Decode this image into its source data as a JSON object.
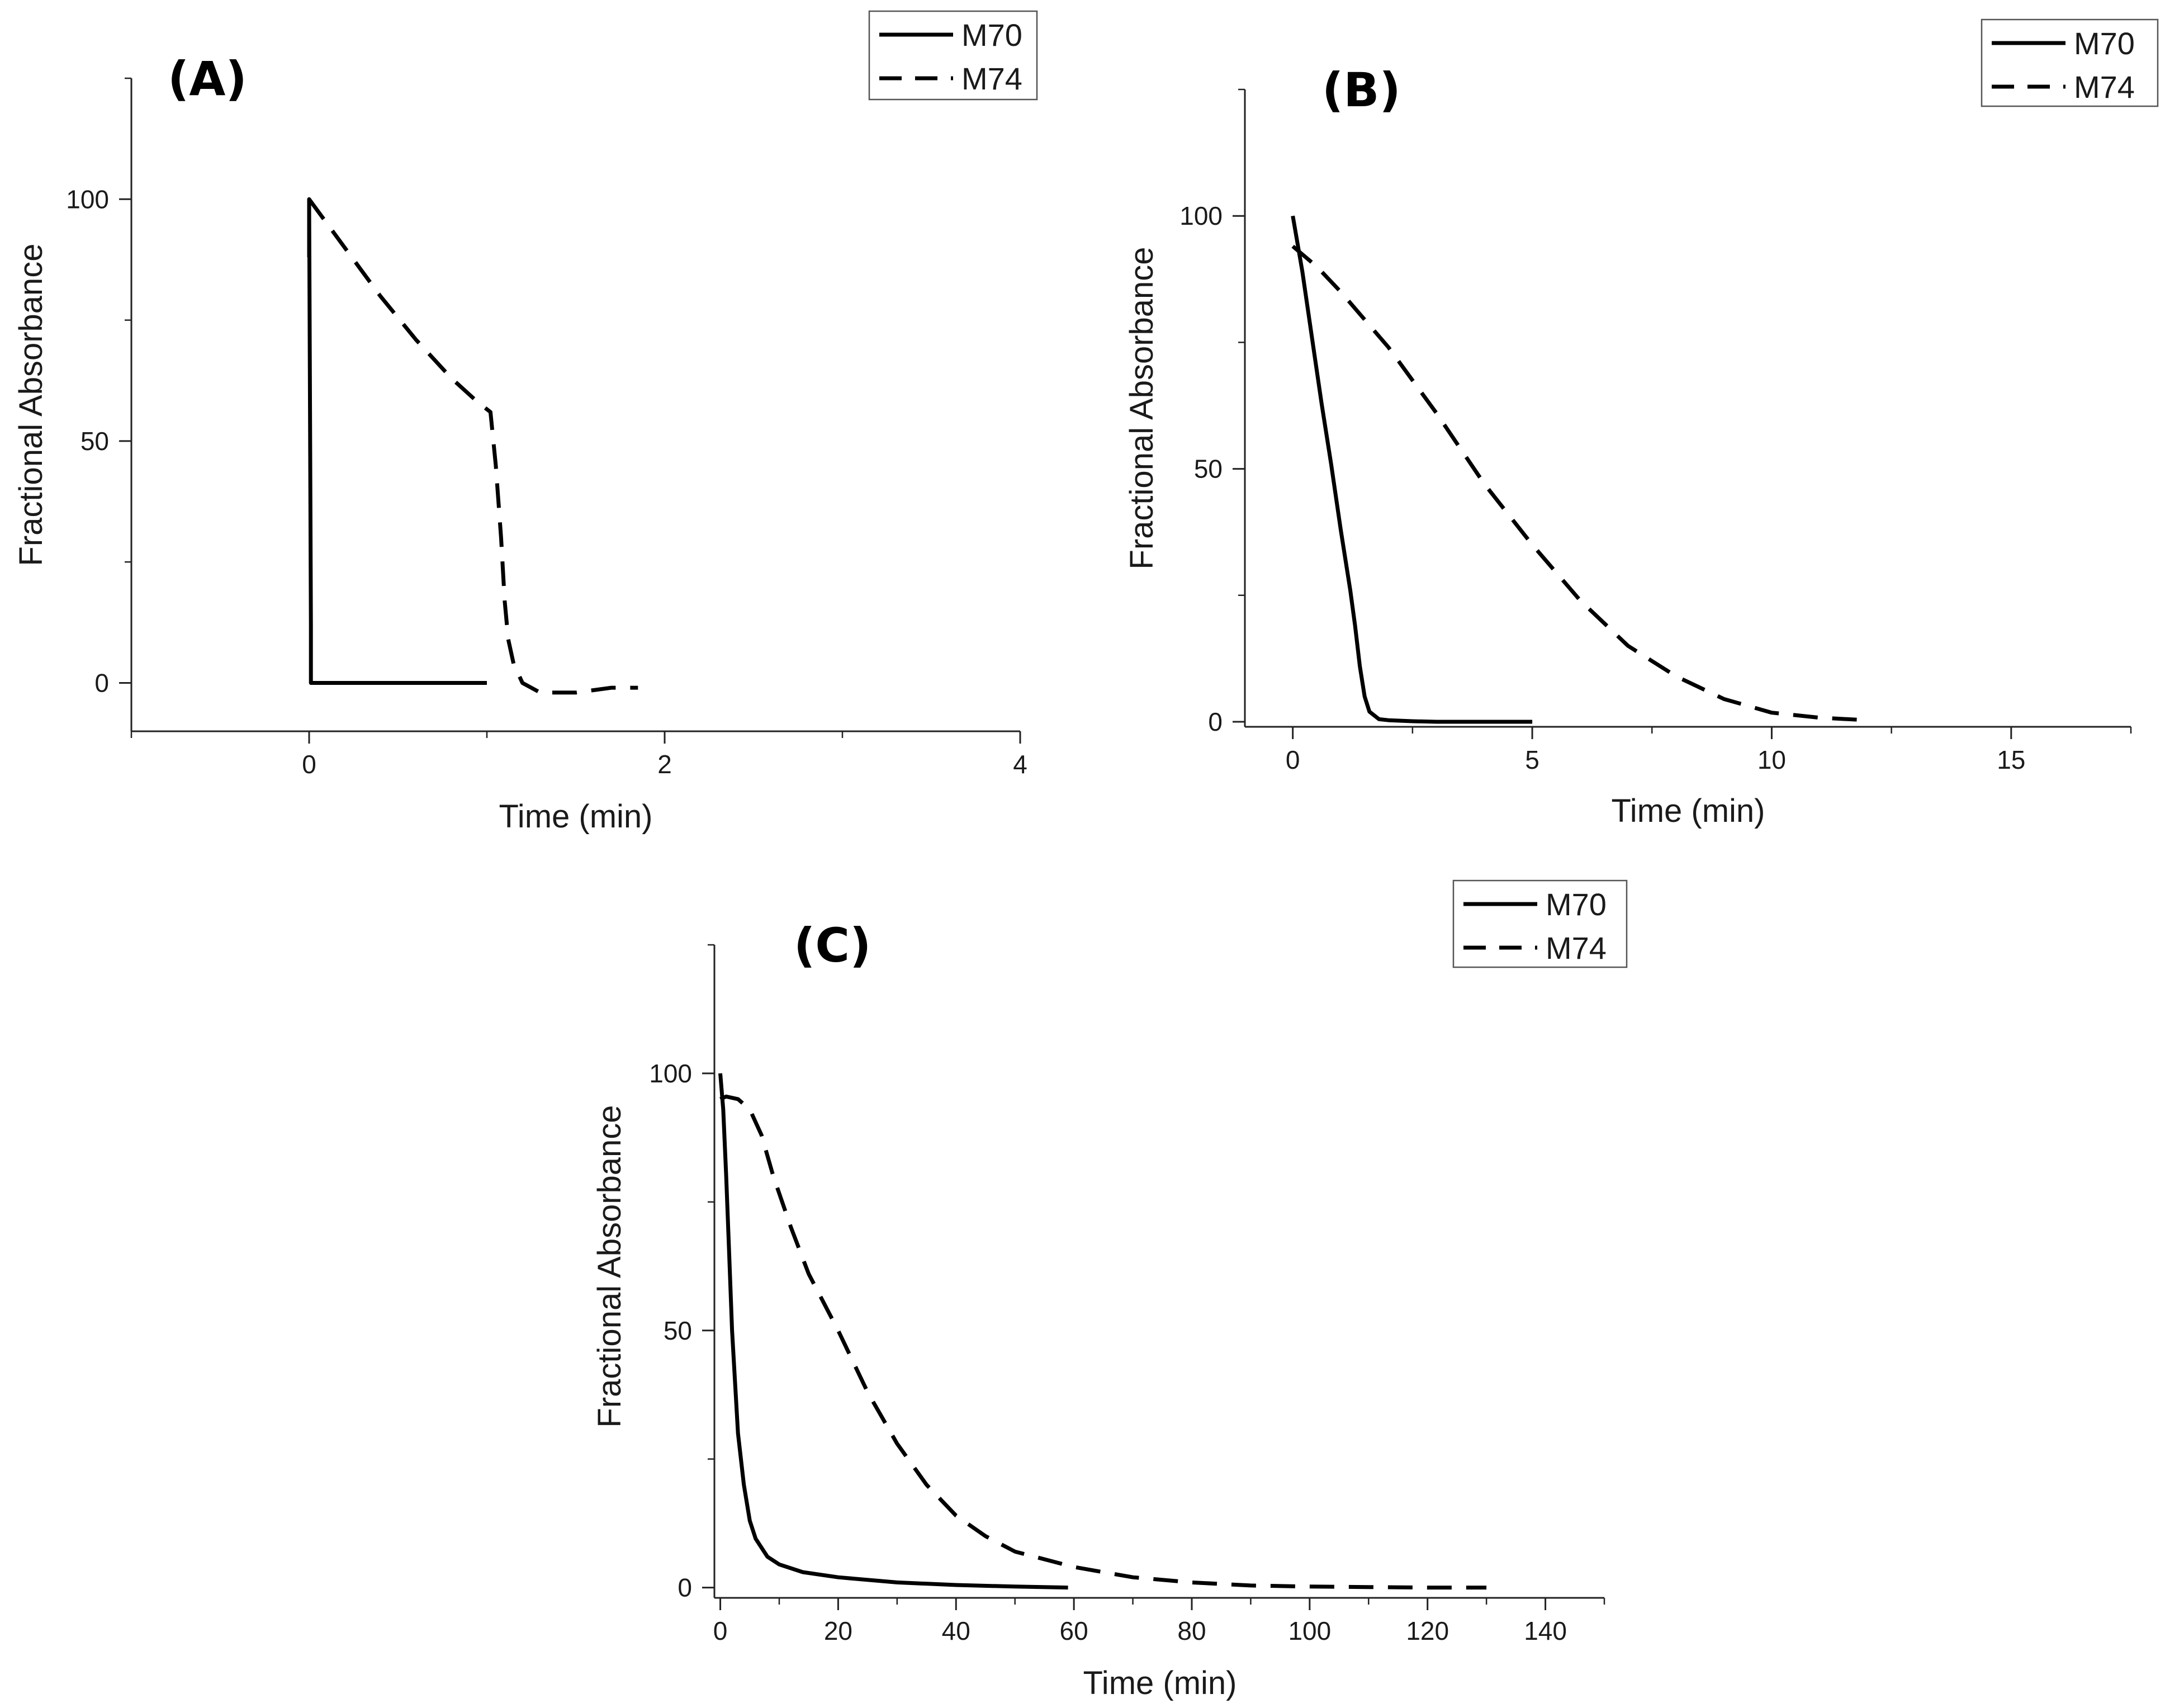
{
  "chart_data": [
    {
      "type": "line",
      "panel_label": "(A)",
      "xlabel": "Time (min)",
      "ylabel": "Fractional Absorbance",
      "xlim": [
        -1,
        4
      ],
      "ylim": [
        -10,
        125
      ],
      "xticks": [
        0,
        2,
        4
      ],
      "xtick_labels": [
        "0",
        "2",
        "4"
      ],
      "yticks": [
        0,
        50,
        100
      ],
      "ytick_labels": [
        "0",
        "50",
        "100"
      ],
      "grid": false,
      "legend_position": "top-right",
      "series": [
        {
          "name": "M70",
          "style": "solid",
          "x": [
            0,
            0,
            0.01,
            0.01,
            1.0
          ],
          "y": [
            88,
            100,
            12,
            0,
            0
          ]
        },
        {
          "name": "M74",
          "style": "dashed",
          "x": [
            0,
            0.2,
            0.4,
            0.6,
            0.8,
            0.95,
            1.02,
            1.05,
            1.08,
            1.1,
            1.12,
            1.15,
            1.2,
            1.3,
            1.5,
            1.7,
            1.85
          ],
          "y": [
            100,
            90,
            80,
            71,
            63,
            58,
            56,
            45,
            30,
            17,
            9,
            4,
            0,
            -2,
            -2,
            -1,
            -1
          ]
        }
      ],
      "legend": [
        "M70",
        "M74"
      ]
    },
    {
      "type": "line",
      "panel_label": "(B)",
      "xlabel": "Time (min)",
      "ylabel": "Fractional Absorbance",
      "xlim": [
        -1,
        17.5
      ],
      "ylim": [
        -1,
        125
      ],
      "xticks": [
        0,
        5,
        10,
        15
      ],
      "xtick_labels": [
        "0",
        "5",
        "10",
        "15"
      ],
      "yticks": [
        0,
        50,
        100
      ],
      "ytick_labels": [
        "0",
        "50",
        "100"
      ],
      "grid": false,
      "legend_position": "top-right",
      "series": [
        {
          "name": "M70",
          "style": "solid",
          "x": [
            0,
            0.2,
            0.4,
            0.6,
            0.8,
            1.0,
            1.2,
            1.3,
            1.4,
            1.5,
            1.6,
            1.8,
            2.0,
            2.5,
            3.0,
            4.0,
            5.0
          ],
          "y": [
            100,
            89,
            76,
            63,
            51,
            38,
            26,
            19,
            11,
            5,
            2,
            0.5,
            0.3,
            0.1,
            0,
            0,
            0
          ]
        },
        {
          "name": "M74",
          "style": "dashed",
          "x": [
            0,
            0.5,
            1,
            2,
            3,
            4,
            5,
            6,
            7,
            8,
            9,
            10,
            11,
            12
          ],
          "y": [
            94,
            90,
            85,
            74,
            61,
            47,
            35,
            24,
            15,
            9,
            4.5,
            1.8,
            0.8,
            0.3
          ]
        }
      ],
      "legend": [
        "M70",
        "M74"
      ]
    },
    {
      "type": "line",
      "panel_label": "(C)",
      "xlabel": "Time (min)",
      "ylabel": "Fractional Absorbance",
      "xlim": [
        -1,
        150
      ],
      "ylim": [
        -2,
        125
      ],
      "xticks": [
        0,
        20,
        40,
        60,
        80,
        100,
        120,
        140
      ],
      "xtick_labels": [
        "0",
        "20",
        "40",
        "60",
        "80",
        "100",
        "120",
        "140"
      ],
      "yticks": [
        0,
        50,
        100
      ],
      "ytick_labels": [
        "0",
        "50",
        "100"
      ],
      "grid": false,
      "legend_position": "top-right",
      "series": [
        {
          "name": "M70",
          "style": "solid",
          "x": [
            0,
            0.5,
            1,
            1.5,
            2,
            2.5,
            3,
            4,
            5,
            6,
            8,
            10,
            14,
            20,
            30,
            40,
            50,
            59
          ],
          "y": [
            100,
            93,
            80,
            65,
            50,
            40,
            30,
            20,
            13,
            9.5,
            6,
            4.5,
            3,
            2,
            1,
            0.5,
            0.2,
            0
          ]
        },
        {
          "name": "M74",
          "style": "dashed",
          "x": [
            0,
            1,
            3,
            5,
            7,
            9,
            12,
            15,
            20,
            25,
            30,
            35,
            40,
            45,
            50,
            60,
            70,
            80,
            90,
            100,
            110,
            120,
            130
          ],
          "y": [
            95,
            95.5,
            95,
            93,
            88,
            80,
            70,
            61,
            50,
            38,
            28,
            20,
            14,
            10,
            7,
            4,
            2,
            1,
            0.4,
            0.2,
            0.1,
            0,
            0
          ]
        }
      ],
      "legend": [
        "M70",
        "M74"
      ]
    }
  ]
}
